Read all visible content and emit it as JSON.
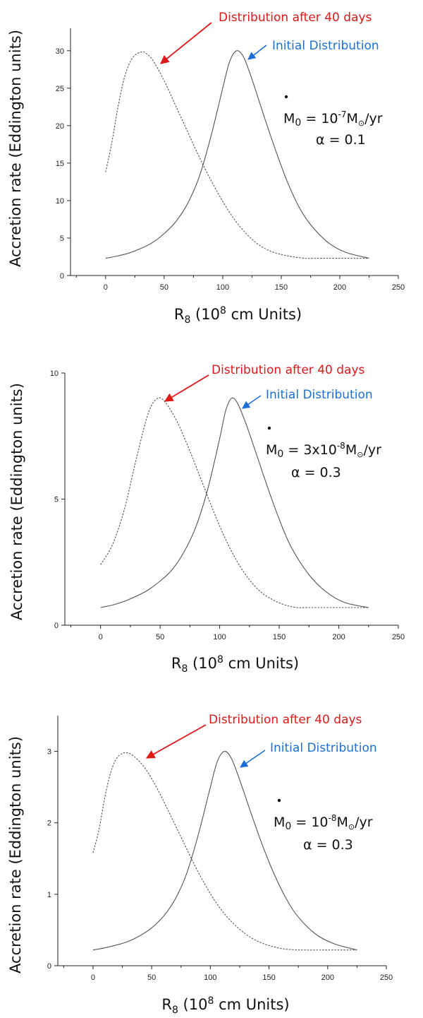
{
  "colors": {
    "red": "#e01818",
    "blue": "#1c6fd6",
    "curve": "#555555",
    "axis": "#222222"
  },
  "chart_data": [
    {
      "type": "line",
      "xlabel": "R",
      "xlabel_sub": "8",
      "xlabel_tail": "  (10",
      "xlabel_sup": "8",
      "xlabel_end": " cm Units)",
      "ylabel": "Accretion rate (Eddington units)",
      "xlim": [
        -30,
        250
      ],
      "ylim": [
        0,
        33
      ],
      "xticks": [
        0,
        50,
        100,
        150,
        200,
        250
      ],
      "yticks": [
        0,
        5,
        10,
        15,
        20,
        25,
        30
      ],
      "annotation_red": "Distribution after 40 days",
      "annotation_blue": "Initial Distribution",
      "param_mdot_pre": "M",
      "param_mdot_sub": "0",
      "param_mdot_eq": " = 10",
      "param_mdot_sup": "-7",
      "param_mdot_unit": "M",
      "param_mdot_post": "/yr",
      "param_alpha": "α = 0.1",
      "series": [
        {
          "style": "dashed",
          "peak_x": 33,
          "peak_y": 29.8,
          "x": [
            0,
            5,
            10,
            15,
            20,
            25,
            30,
            33,
            40,
            50,
            60,
            70,
            80,
            90,
            100,
            110,
            120,
            130,
            140,
            150,
            160,
            170,
            180,
            200,
            225
          ],
          "y": [
            13.8,
            17.5,
            22.0,
            25.8,
            28.2,
            29.4,
            29.8,
            29.8,
            28.8,
            26.0,
            22.6,
            19.2,
            15.8,
            12.7,
            9.9,
            7.5,
            5.6,
            4.2,
            3.3,
            2.8,
            2.5,
            2.3,
            2.3,
            2.3,
            2.3
          ]
        },
        {
          "style": "solid",
          "peak_x": 112,
          "peak_y": 30.0,
          "x": [
            0,
            10,
            20,
            30,
            40,
            50,
            60,
            70,
            80,
            90,
            100,
            106,
            112,
            118,
            125,
            135,
            145,
            155,
            165,
            175,
            190,
            205,
            225
          ],
          "y": [
            2.3,
            2.6,
            3.0,
            3.6,
            4.4,
            5.6,
            7.2,
            9.6,
            13.2,
            18.6,
            25.0,
            28.6,
            30.0,
            29.1,
            26.2,
            21.4,
            16.8,
            12.6,
            9.2,
            6.8,
            4.4,
            3.1,
            2.3
          ]
        }
      ]
    },
    {
      "type": "line",
      "xlabel": "R",
      "xlabel_sub": "8",
      "xlabel_tail": "  (10",
      "xlabel_sup": "8",
      "xlabel_end": " cm Units)",
      "ylabel": "Accretion rate (Eddington units)",
      "xlim": [
        -30,
        250
      ],
      "ylim": [
        0,
        10
      ],
      "xticks": [
        0,
        50,
        100,
        150,
        200,
        250
      ],
      "yticks": [
        0,
        5,
        10
      ],
      "annotation_red": "Distribution after 40 days",
      "annotation_blue": "Initial Distribution",
      "param_mdot_pre": "M",
      "param_mdot_sub": "0",
      "param_mdot_eq": " = 3x10",
      "param_mdot_sup": "-8",
      "param_mdot_unit": "M",
      "param_mdot_post": "/yr",
      "param_alpha": "α = 0.3",
      "series": [
        {
          "style": "dashed",
          "peak_x": 48,
          "peak_y": 9.0,
          "x": [
            0,
            10,
            20,
            30,
            40,
            48,
            55,
            65,
            75,
            85,
            95,
            105,
            115,
            125,
            135,
            145,
            155,
            165,
            175,
            200,
            225
          ],
          "y": [
            2.4,
            3.2,
            4.6,
            6.6,
            8.4,
            9.0,
            8.8,
            8.0,
            6.9,
            5.7,
            4.5,
            3.4,
            2.5,
            1.8,
            1.3,
            1.0,
            0.8,
            0.7,
            0.7,
            0.7,
            0.7
          ]
        },
        {
          "style": "solid",
          "peak_x": 110,
          "peak_y": 9.0,
          "x": [
            0,
            10,
            20,
            30,
            40,
            50,
            60,
            70,
            80,
            90,
            100,
            105,
            110,
            115,
            122,
            130,
            140,
            150,
            160,
            175,
            190,
            205,
            225
          ],
          "y": [
            0.7,
            0.8,
            0.95,
            1.15,
            1.4,
            1.75,
            2.2,
            2.9,
            3.9,
            5.4,
            7.4,
            8.5,
            9.0,
            8.8,
            8.0,
            6.9,
            5.5,
            4.2,
            3.1,
            2.0,
            1.3,
            0.9,
            0.7
          ]
        }
      ]
    },
    {
      "type": "line",
      "xlabel": "R",
      "xlabel_sub": "8",
      "xlabel_tail": "  (10",
      "xlabel_sup": "8",
      "xlabel_end": " cm Units)",
      "ylabel": "Accretion rate (Eddington units)",
      "xlim": [
        -30,
        250
      ],
      "ylim": [
        0,
        3.5
      ],
      "xticks": [
        0,
        50,
        100,
        150,
        200,
        250
      ],
      "yticks": [
        0,
        1,
        2,
        3
      ],
      "annotation_red": "Distribution after 40 days",
      "annotation_blue": "Initial Distribution",
      "param_mdot_pre": "M",
      "param_mdot_sub": "0",
      "param_mdot_eq": " = 10",
      "param_mdot_sup": "-8",
      "param_mdot_unit": "M",
      "param_mdot_post": "/yr",
      "param_alpha": "α = 0.3",
      "series": [
        {
          "style": "dashed",
          "peak_x": 29,
          "peak_y": 2.98,
          "x": [
            0,
            5,
            10,
            15,
            20,
            25,
            29,
            35,
            45,
            55,
            65,
            75,
            85,
            95,
            105,
            115,
            125,
            135,
            145,
            155,
            165,
            180,
            200,
            225
          ],
          "y": [
            1.58,
            1.9,
            2.35,
            2.7,
            2.9,
            2.97,
            2.98,
            2.93,
            2.75,
            2.47,
            2.14,
            1.8,
            1.46,
            1.15,
            0.88,
            0.67,
            0.51,
            0.39,
            0.31,
            0.26,
            0.23,
            0.22,
            0.22,
            0.22
          ]
        },
        {
          "style": "solid",
          "peak_x": 112,
          "peak_y": 3.0,
          "x": [
            0,
            10,
            20,
            30,
            40,
            50,
            60,
            70,
            80,
            90,
            100,
            106,
            112,
            118,
            125,
            135,
            145,
            155,
            165,
            175,
            190,
            205,
            225
          ],
          "y": [
            0.22,
            0.25,
            0.29,
            0.34,
            0.42,
            0.53,
            0.69,
            0.93,
            1.3,
            1.85,
            2.5,
            2.86,
            3.0,
            2.9,
            2.6,
            2.12,
            1.66,
            1.26,
            0.93,
            0.68,
            0.44,
            0.31,
            0.22
          ]
        }
      ]
    }
  ]
}
